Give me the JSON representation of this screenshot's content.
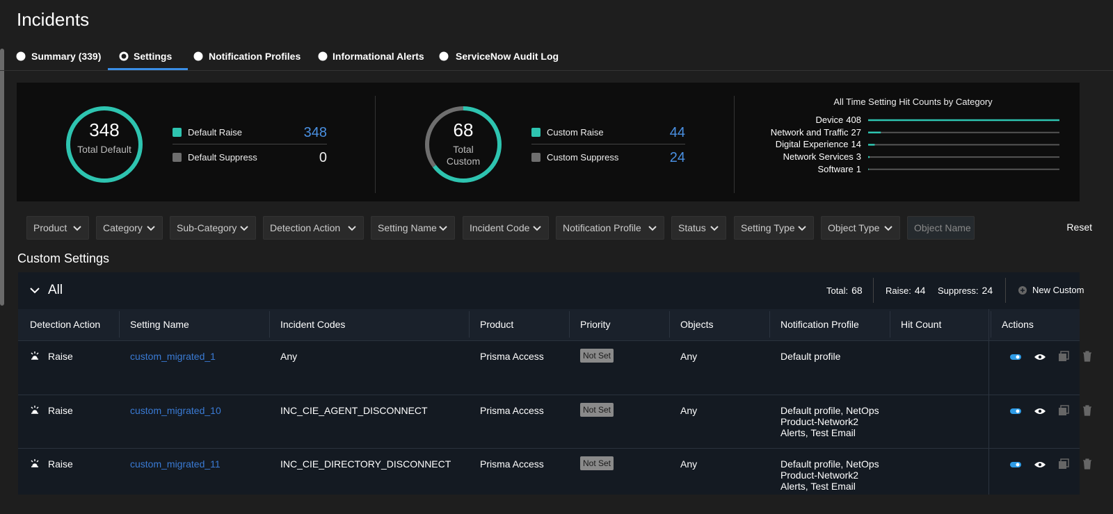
{
  "header": {
    "title": "Incidents"
  },
  "tabs": [
    "Summary (339)",
    "Settings",
    "Notification Profiles",
    "Informational Alerts",
    "ServiceNow Audit Log"
  ],
  "active_tab": 1,
  "summary": {
    "default": {
      "total": 348,
      "caption": "Total Default",
      "legend": [
        {
          "label": "Default Raise",
          "value": 348,
          "color": "#2ec4b0"
        },
        {
          "label": "Default Suppress",
          "value": 0,
          "color": "#6e6e6e"
        }
      ]
    },
    "custom": {
      "total": 68,
      "caption": "Total Custom",
      "legend": [
        {
          "label": "Custom Raise",
          "value": 44,
          "color": "#2ec4b0"
        },
        {
          "label": "Custom Suppress",
          "value": 24,
          "color": "#6e6e6e"
        }
      ]
    },
    "hit_counts": {
      "title": "All Time Setting Hit Counts by Category",
      "color": "#2ec4b0",
      "items": [
        {
          "name": "Device",
          "value": 408
        },
        {
          "name": "Network and Traffic",
          "value": 27
        },
        {
          "name": "Digital Experience",
          "value": 14
        },
        {
          "name": "Network Services",
          "value": 3
        },
        {
          "name": "Software",
          "value": 1
        }
      ]
    }
  },
  "filters": [
    "Product",
    "Category",
    "Sub-Category",
    "Detection Action",
    "Setting Name",
    "Incident Code",
    "Notification Profile",
    "Status",
    "Setting Type",
    "Object Type",
    "Object Name"
  ],
  "reset": "Reset",
  "section_title": "Custom Settings",
  "group": {
    "label": "All",
    "total_label": "Total:",
    "total": 68,
    "raise_label": "Raise:",
    "raise": 44,
    "suppress_label": "Suppress:",
    "suppress": 24,
    "new_button": "New Custom"
  },
  "table": {
    "columns": [
      "Detection Action",
      "Setting Name",
      "Incident Codes",
      "Product",
      "Priority",
      "Objects",
      "Notification Profile",
      "Hit Count",
      "Actions"
    ],
    "rows": [
      {
        "action": "Raise",
        "name": "custom_migrated_1",
        "codes": "Any",
        "product": "Prisma Access",
        "priority": "Not Set",
        "objects": "Any",
        "profile": "Default profile"
      },
      {
        "action": "Raise",
        "name": "custom_migrated_10",
        "codes": "INC_CIE_AGENT_DISCONNECT",
        "product": "Prisma Access",
        "priority": "Not Set",
        "objects": "Any",
        "profile": "Default profile, NetOps Product-Network2 Alerts, Test Email"
      },
      {
        "action": "Raise",
        "name": "custom_migrated_11",
        "codes": "INC_CIE_DIRECTORY_DISCONNECT",
        "product": "Prisma Access",
        "priority": "Not Set",
        "objects": "Any",
        "profile": "Default profile, NetOps Product-Network2 Alerts, Test Email"
      }
    ]
  }
}
